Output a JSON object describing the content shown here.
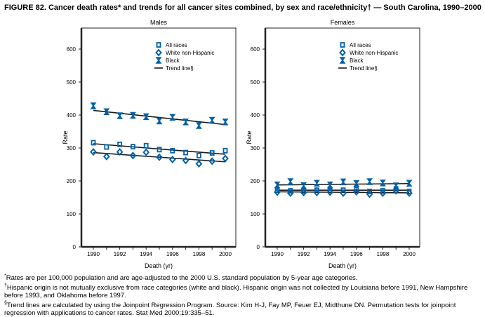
{
  "title": "FIGURE 82. Cancer death rates* and trends for all cancer sites combined, by sex and race/ethnicity† — South Carolina, 1990–2000",
  "footnotes": [
    {
      "mark": "*",
      "text": "Rates are per 100,000 population and are age-adjusted to the 2000 U.S. standard population by 5-year age categories."
    },
    {
      "mark": "†",
      "text": "Hispanic origin is not mutually exclusive from race categories (white and black). Hispanic origin was not collected by Louisiana before 1991, New Hampshire before 1993, and Oklahoma before 1997."
    },
    {
      "mark": "§",
      "text": "Trend lines are calculated by using the Joinpoint Regression Program. Source: Kim H-J, Fay MP, Feuer EJ, Midthune DN. Permutation tests for joinpoint regression with applications to cancer rates. Stat Med 2000;19:335–51."
    }
  ],
  "colors": {
    "marker": "#0060a8",
    "trend": "#1a1a1a"
  },
  "chart_data": [
    {
      "type": "scatter",
      "title": "Males",
      "xlabel": "Death (yr)",
      "ylabel": "Rate",
      "ylim": [
        0,
        600
      ],
      "yticks": [
        0,
        100,
        200,
        300,
        400,
        500,
        600
      ],
      "x": [
        1990,
        1991,
        1992,
        1993,
        1994,
        1995,
        1996,
        1997,
        1998,
        1999,
        2000
      ],
      "xticks": [
        1990,
        1992,
        1994,
        1996,
        1998,
        2000
      ],
      "legend": {
        "placement": "top-right",
        "entries": [
          "All races",
          "White non-Hispanic",
          "Black",
          "Trend line§"
        ]
      },
      "series": [
        {
          "name": "All races",
          "marker": "square",
          "values": [
            316,
            303,
            311,
            304,
            307,
            295,
            292,
            286,
            277,
            285,
            292
          ],
          "trend": [
            [
              1990,
              313
            ],
            [
              2000,
              281
            ]
          ]
        },
        {
          "name": "White non-Hispanic",
          "marker": "diamond",
          "values": [
            288,
            274,
            288,
            277,
            287,
            272,
            265,
            262,
            252,
            260,
            268
          ],
          "trend": [
            [
              1990,
              286
            ],
            [
              2000,
              258
            ]
          ]
        },
        {
          "name": "Black",
          "marker": "star",
          "values": [
            428,
            410,
            398,
            399,
            395,
            382,
            393,
            379,
            368,
            384,
            379
          ],
          "trend": [
            [
              1990,
              414
            ],
            [
              2000,
              371
            ]
          ]
        }
      ]
    },
    {
      "type": "scatter",
      "title": "Females",
      "xlabel": "Death (yr)",
      "ylabel": "Rate",
      "ylim": [
        0,
        600
      ],
      "yticks": [
        0,
        100,
        200,
        300,
        400,
        500,
        600
      ],
      "x": [
        1990,
        1991,
        1992,
        1993,
        1994,
        1995,
        1996,
        1997,
        1998,
        1999,
        2000
      ],
      "xticks": [
        1990,
        1992,
        1994,
        1996,
        1998,
        2000
      ],
      "legend": {
        "placement": "top-right",
        "entries": [
          "All races",
          "White non-Hispanic",
          "Black",
          "Trend line§"
        ]
      },
      "series": [
        {
          "name": "All races",
          "marker": "square",
          "values": [
            172,
            170,
            170,
            172,
            171,
            172,
            174,
            168,
            170,
            176,
            168
          ],
          "trend": [
            [
              1990,
              172
            ],
            [
              2000,
              172
            ]
          ]
        },
        {
          "name": "White non-Hispanic",
          "marker": "diamond",
          "values": [
            166,
            163,
            165,
            165,
            166,
            163,
            167,
            160,
            163,
            170,
            163
          ],
          "trend": [
            [
              1990,
              167
            ],
            [
              2000,
              164
            ]
          ]
        },
        {
          "name": "Black",
          "marker": "star",
          "values": [
            188,
            198,
            186,
            193,
            188,
            197,
            192,
            198,
            194,
            185,
            193
          ],
          "trend": [
            [
              1990,
              188
            ],
            [
              2000,
              192
            ]
          ]
        }
      ]
    }
  ]
}
